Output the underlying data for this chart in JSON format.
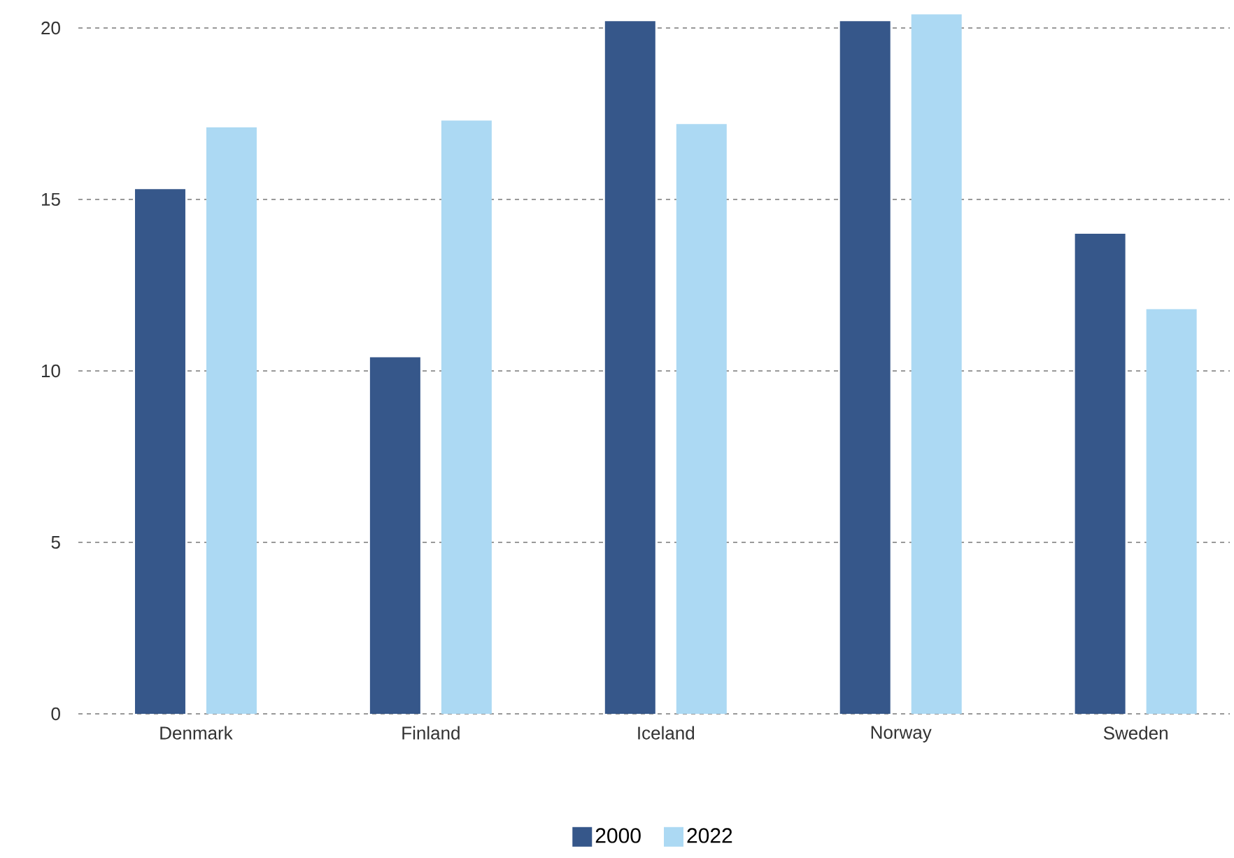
{
  "chart_data": {
    "type": "bar",
    "categories": [
      "Denmark",
      "Finland",
      "Iceland",
      "Norway",
      "Sweden"
    ],
    "series": [
      {
        "name": "2000",
        "color": "#36578a",
        "values": [
          15.3,
          10.4,
          20.2,
          20.2,
          14.0
        ]
      },
      {
        "name": "2022",
        "color": "#acd9f3",
        "values": [
          17.1,
          17.3,
          17.2,
          20.4,
          11.8
        ]
      }
    ],
    "ylim": [
      0,
      20.5
    ],
    "yticks": [
      0,
      5,
      10,
      15,
      20
    ],
    "grid": "y",
    "legend": "bottom"
  }
}
